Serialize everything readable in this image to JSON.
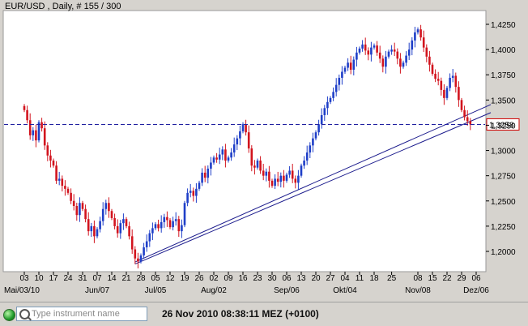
{
  "chart_data": {
    "type": "candlestick",
    "title": "EUR/USD , Daily, # 155 / 300",
    "y_ticks": [
      "1,4250",
      "1,4000",
      "1,3750",
      "1,3500",
      "1,3250",
      "1,3000",
      "1,2750",
      "1,2500",
      "1,2250",
      "1,2000"
    ],
    "y_tick_values": [
      1.425,
      1.4,
      1.375,
      1.35,
      1.325,
      1.3,
      1.275,
      1.25,
      1.225,
      1.2
    ],
    "ylim": [
      1.1765,
      1.4605
    ],
    "grid": false,
    "day_labels": [
      "03",
      "10",
      "17",
      "24",
      "31",
      "07",
      "14",
      "21",
      "28",
      "05",
      "12",
      "19",
      "26",
      "02",
      "09",
      "16",
      "23",
      "30",
      "06",
      "13",
      "20",
      "27",
      "04",
      "11",
      "18",
      "25",
      "08",
      "15",
      "22",
      "29",
      "06"
    ],
    "day_label_index": [
      0,
      5,
      10,
      15,
      20,
      25,
      30,
      35,
      40,
      45,
      50,
      55,
      60,
      65,
      70,
      75,
      80,
      85,
      90,
      95,
      100,
      105,
      110,
      115,
      120,
      126,
      135,
      140,
      145,
      150,
      155
    ],
    "month_labels": [
      "Mai/03/10",
      "Jun/07",
      "Jul/05",
      "Aug/02",
      "Sep/06",
      "Okt/04",
      "Nov/08",
      "Dez/06"
    ],
    "month_label_index": [
      0,
      25,
      45,
      65,
      90,
      110,
      135,
      155
    ],
    "current_price_label": "1,3258",
    "current_price": 1.3258,
    "closes": [
      1.34,
      1.33,
      1.315,
      1.32,
      1.31,
      1.328,
      1.322,
      1.305,
      1.295,
      1.29,
      1.285,
      1.27,
      1.272,
      1.265,
      1.262,
      1.258,
      1.25,
      1.245,
      1.236,
      1.248,
      1.242,
      1.232,
      1.22,
      1.225,
      1.215,
      1.222,
      1.23,
      1.242,
      1.248,
      1.24,
      1.233,
      1.225,
      1.218,
      1.228,
      1.232,
      1.225,
      1.215,
      1.202,
      1.193,
      1.19,
      1.196,
      1.204,
      1.21,
      1.218,
      1.223,
      1.227,
      1.223,
      1.229,
      1.234,
      1.231,
      1.224,
      1.23,
      1.232,
      1.22,
      1.226,
      1.248,
      1.258,
      1.26,
      1.255,
      1.262,
      1.268,
      1.278,
      1.273,
      1.282,
      1.288,
      1.293,
      1.291,
      1.296,
      1.301,
      1.29,
      1.293,
      1.298,
      1.306,
      1.312,
      1.319,
      1.326,
      1.318,
      1.302,
      1.285,
      1.283,
      1.29,
      1.28,
      1.275,
      1.279,
      1.27,
      1.265,
      1.272,
      1.269,
      1.275,
      1.27,
      1.276,
      1.28,
      1.272,
      1.268,
      1.275,
      1.285,
      1.29,
      1.298,
      1.305,
      1.312,
      1.318,
      1.326,
      1.335,
      1.342,
      1.348,
      1.352,
      1.358,
      1.365,
      1.372,
      1.378,
      1.382,
      1.387,
      1.38,
      1.39,
      1.397,
      1.401,
      1.405,
      1.399,
      1.395,
      1.402,
      1.404,
      1.397,
      1.391,
      1.383,
      1.393,
      1.398,
      1.4,
      1.398,
      1.391,
      1.383,
      1.387,
      1.394,
      1.4,
      1.409,
      1.417,
      1.42,
      1.412,
      1.402,
      1.393,
      1.385,
      1.376,
      1.371,
      1.369,
      1.36,
      1.352,
      1.362,
      1.372,
      1.374,
      1.363,
      1.35,
      1.34,
      1.333,
      1.329,
      1.3258
    ],
    "trendlines": [
      {
        "name": "",
        "start": [
          38,
          1.1895
        ],
        "end": [
          160,
          1.3455
        ]
      },
      {
        "name": "",
        "start": [
          38,
          1.1875
        ],
        "end": [
          160,
          1.3375
        ]
      }
    ]
  },
  "statusbar": {
    "search_placeholder": "Type instrument name",
    "timestamp": "26 Nov 2010 08:38:11  MEZ (+0100)"
  },
  "colors": {
    "background": "#d6d3ce",
    "plot_background": "#ffffff",
    "up_candle": "#1f3fc8",
    "down_candle": "#d2141e",
    "trendline": "#1a1a8c",
    "price_line": "#2020a0",
    "price_label_border": "#d00000"
  }
}
